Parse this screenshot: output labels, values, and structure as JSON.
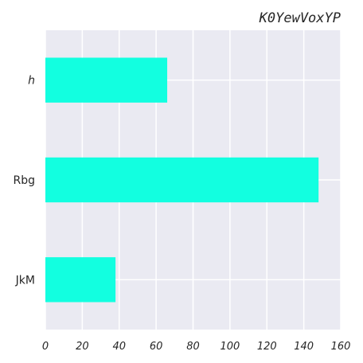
{
  "chart_data": {
    "type": "bar",
    "orientation": "horizontal",
    "title": "K0YewVoxYP",
    "xlabel": "",
    "ylabel": "",
    "categories": [
      "h",
      "Rbg",
      "JkM"
    ],
    "values": [
      66,
      148,
      38
    ],
    "xlim": [
      0,
      160
    ],
    "xticks": [
      0,
      20,
      40,
      60,
      80,
      100,
      120,
      140,
      160
    ],
    "grid": true,
    "bar_color": "#12ffe0",
    "background_color": "#eaeaf2",
    "grid_color": "#ffffff"
  }
}
